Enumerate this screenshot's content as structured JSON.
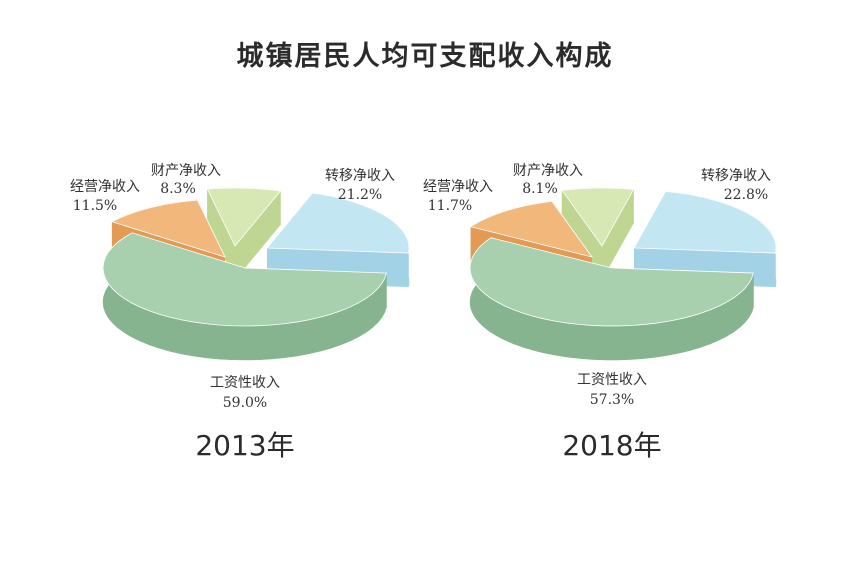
{
  "title": "城镇居民人均可支配收入构成",
  "chart_data": [
    {
      "type": "pie",
      "year_label": "2013年",
      "slices": [
        {
          "name": "工资性收入",
          "value_label": "59.0%",
          "value": 59.0,
          "color": "#a8d0ae",
          "side_color": "#86b48e"
        },
        {
          "name": "经营净收入",
          "value_label": "11.5%",
          "value": 11.5,
          "color": "#f2b77a",
          "side_color": "#e29a55"
        },
        {
          "name": "财产净收入",
          "value_label": "8.3%",
          "value": 8.3,
          "color": "#d8e8b4",
          "side_color": "#bfd592"
        },
        {
          "name": "转移净收入",
          "value_label": "21.2%",
          "value": 21.2,
          "color": "#c3e6f3",
          "side_color": "#a2d2e6"
        }
      ]
    },
    {
      "type": "pie",
      "year_label": "2018年",
      "slices": [
        {
          "name": "工资性收入",
          "value_label": "57.3%",
          "value": 57.3,
          "color": "#a8d0ae",
          "side_color": "#86b48e"
        },
        {
          "name": "经营净收入",
          "value_label": "11.7%",
          "value": 11.7,
          "color": "#f2b77a",
          "side_color": "#e29a55"
        },
        {
          "name": "财产净收入",
          "value_label": "8.1%",
          "value": 8.1,
          "color": "#d8e8b4",
          "side_color": "#bfd592"
        },
        {
          "name": "转移净收入",
          "value_label": "22.8%",
          "value": 22.8,
          "color": "#c3e6f3",
          "side_color": "#a2d2e6"
        }
      ]
    }
  ]
}
